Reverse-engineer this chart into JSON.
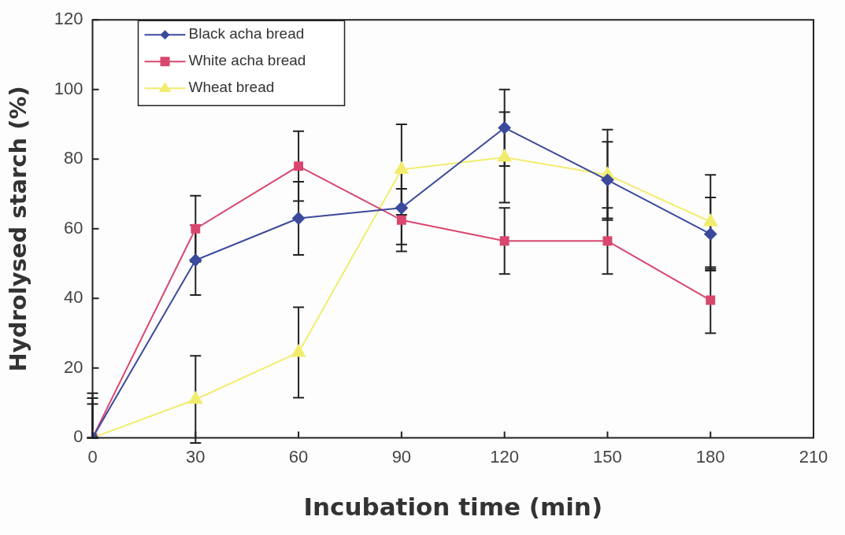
{
  "chart_data": {
    "type": "line",
    "xlabel": "Incubation time (min)",
    "ylabel": "Hydrolysed starch (%)",
    "x": [
      0,
      30,
      60,
      90,
      120,
      150,
      180
    ],
    "series": [
      {
        "name": "Black acha bread",
        "color": "#3b4a9c",
        "marker": "diamond",
        "values": [
          0,
          51,
          63,
          66,
          89,
          74,
          58.5
        ],
        "errors": [
          [
            0,
            11.4
          ],
          10,
          10.5,
          10.5,
          11,
          11,
          10.5
        ]
      },
      {
        "name": "White acha bread",
        "color": "#d9476e",
        "marker": "square",
        "values": [
          0,
          60,
          78,
          62.5,
          56.5,
          56.5,
          39.5
        ],
        "errors": [
          [
            0,
            9.7
          ],
          9.5,
          10,
          9,
          9.5,
          9.5,
          9.5
        ]
      },
      {
        "name": "Wheat bread",
        "color": "#f2ec6e",
        "marker": "triangle",
        "values": [
          0,
          11,
          24.5,
          77,
          80.5,
          75.5,
          62
        ],
        "errors": [
          [
            0,
            12.8
          ],
          12.5,
          13,
          13,
          13,
          13,
          13.5
        ]
      }
    ],
    "xlim": [
      0,
      210
    ],
    "xticks": [
      0,
      30,
      60,
      90,
      120,
      150,
      180,
      210
    ],
    "ylim": [
      0,
      120
    ],
    "yticks": [
      0,
      20,
      40,
      60,
      80,
      100,
      120
    ],
    "grid": false,
    "legend": "top left",
    "line_style": "solid"
  }
}
